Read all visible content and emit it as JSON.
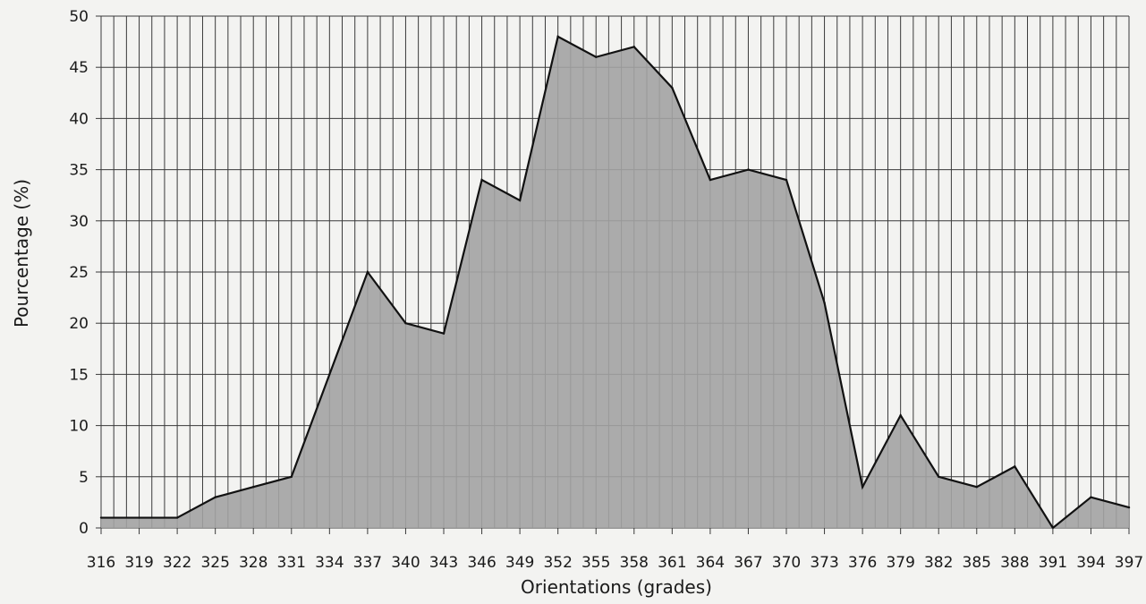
{
  "chart_data": {
    "type": "area",
    "title": "",
    "xlabel": "Orientations (grades)",
    "ylabel": "Pourcentage (%)",
    "ylim": [
      0,
      50
    ],
    "yticks": [
      0,
      5,
      10,
      15,
      20,
      25,
      30,
      35,
      40,
      45,
      50
    ],
    "xticks": [
      316,
      319,
      322,
      325,
      328,
      331,
      334,
      337,
      340,
      343,
      346,
      349,
      352,
      355,
      358,
      361,
      364,
      367,
      370,
      373,
      376,
      379,
      382,
      385,
      388,
      391,
      394,
      397
    ],
    "grid": true,
    "x": [
      316,
      319,
      322,
      325,
      328,
      331,
      334,
      337,
      340,
      343,
      346,
      349,
      352,
      355,
      358,
      361,
      364,
      367,
      370,
      373,
      376,
      379,
      382,
      385,
      388,
      391,
      394,
      397
    ],
    "series": [
      {
        "values": [
          1,
          1,
          1,
          3,
          4,
          5,
          15,
          25,
          20,
          19,
          34,
          32,
          48,
          46,
          47,
          43,
          34,
          35,
          34,
          22,
          4,
          11,
          5,
          4,
          6,
          0,
          3,
          2
        ]
      }
    ],
    "fill_color": "#a3a3a3",
    "line_color": "#111111",
    "grid_color": "#3a3a3a"
  }
}
